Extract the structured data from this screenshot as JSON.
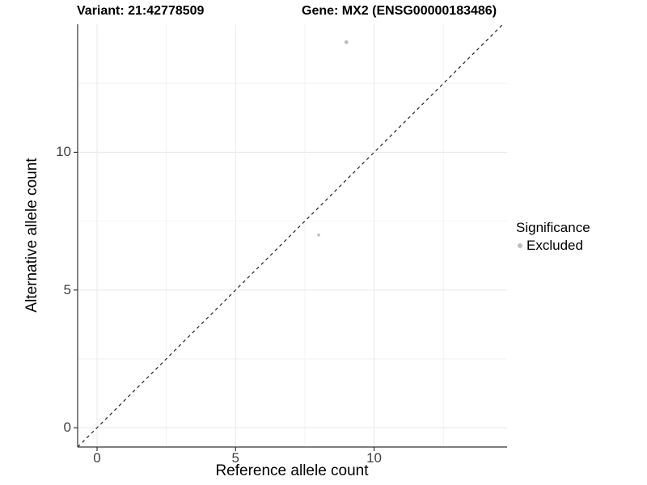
{
  "titles": {
    "variant": "Variant: 21:42778509",
    "gene": "Gene: MX2 (ENSG00000183486)"
  },
  "axes": {
    "x_label": "Reference allele count",
    "y_label": "Alternative allele count"
  },
  "legend": {
    "title": "Significance",
    "entries": [
      {
        "label": "Excluded",
        "color": "#bebebe"
      }
    ]
  },
  "chart_data": {
    "type": "scatter",
    "title": "Variant: 21:42778509  /  Gene: MX2 (ENSG00000183486)",
    "xlabel": "Reference allele count",
    "ylabel": "Alternative allele count",
    "xlim": [
      -0.7,
      14.8
    ],
    "ylim": [
      -0.7,
      14.65
    ],
    "x_ticks": [
      0,
      5,
      10
    ],
    "y_ticks": [
      0,
      5,
      10
    ],
    "x_minor_ticks": [
      2.5,
      7.5,
      12.5
    ],
    "y_minor_ticks": [
      2.5,
      7.5,
      12.5
    ],
    "grid": true,
    "legend_position": "right",
    "series": [
      {
        "name": "Excluded",
        "color": "#bebebe",
        "points": [
          {
            "x": 9,
            "y": 14,
            "r": 2.4
          },
          {
            "x": 8,
            "y": 7,
            "r": 1.8
          }
        ]
      }
    ],
    "reference_line": {
      "kind": "identity",
      "style": "dashed",
      "color": "#222222",
      "dash": "4 4"
    },
    "colors": {
      "grid_major": "#e8e8e8",
      "grid_minor": "#f2f2f2",
      "axis": "#333333",
      "background": "#ffffff"
    }
  }
}
